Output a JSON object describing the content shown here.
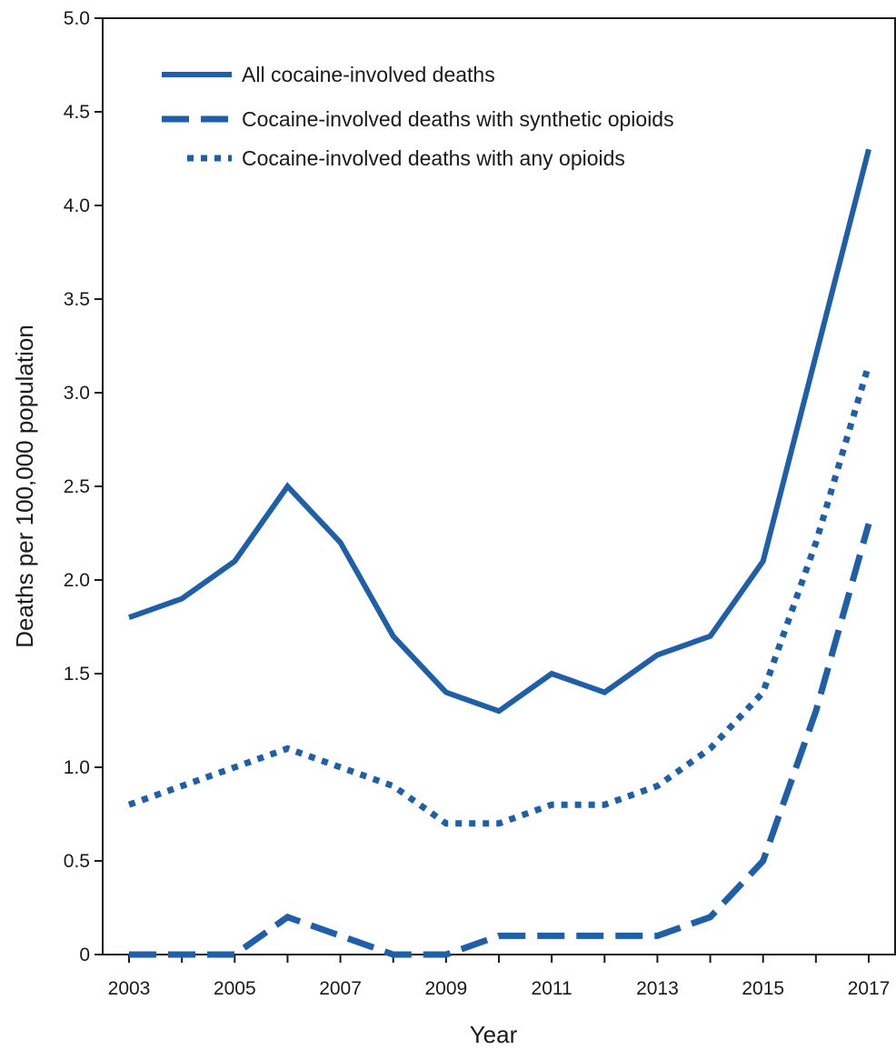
{
  "chart_data": {
    "type": "line",
    "xlabel": "Year",
    "ylabel": "Deaths per 100,000 population",
    "xlim": [
      2003,
      2017
    ],
    "ylim": [
      0,
      5.0
    ],
    "x": [
      2003,
      2004,
      2005,
      2006,
      2007,
      2008,
      2009,
      2010,
      2011,
      2012,
      2013,
      2014,
      2015,
      2016,
      2017
    ],
    "x_tick_values": [
      2003,
      2005,
      2007,
      2009,
      2011,
      2013,
      2015,
      2017
    ],
    "x_tick_labels": [
      "2003",
      "2005",
      "2007",
      "2009",
      "2011",
      "2013",
      "2015",
      "2017"
    ],
    "y_tick_values": [
      0,
      0.5,
      1.0,
      1.5,
      2.0,
      2.5,
      3.0,
      3.5,
      4.0,
      4.5,
      5.0
    ],
    "y_tick_labels": [
      "0",
      "0.5",
      "1.0",
      "1.5",
      "2.0",
      "2.5",
      "3.0",
      "3.5",
      "4.0",
      "4.5",
      "5.0"
    ],
    "grid": false,
    "legend_position": "top-left",
    "line_color": "#1f5fa8",
    "series": [
      {
        "name": "All cocaine-involved deaths",
        "style": "solid",
        "values": [
          1.8,
          1.9,
          2.1,
          2.5,
          2.2,
          1.7,
          1.4,
          1.3,
          1.5,
          1.4,
          1.6,
          1.7,
          2.1,
          3.2,
          4.3
        ]
      },
      {
        "name": "Cocaine-involved deaths with synthetic opioids",
        "style": "dashed",
        "values": [
          0.0,
          0.0,
          0.0,
          0.2,
          0.1,
          0.0,
          0.0,
          0.1,
          0.1,
          0.1,
          0.1,
          0.2,
          0.5,
          1.3,
          2.3
        ]
      },
      {
        "name": "Cocaine-involved deaths with any opioids",
        "style": "dotted",
        "values": [
          0.8,
          0.9,
          1.0,
          1.1,
          1.0,
          0.9,
          0.7,
          0.7,
          0.8,
          0.8,
          0.9,
          1.1,
          1.4,
          2.2,
          3.15
        ]
      }
    ]
  }
}
